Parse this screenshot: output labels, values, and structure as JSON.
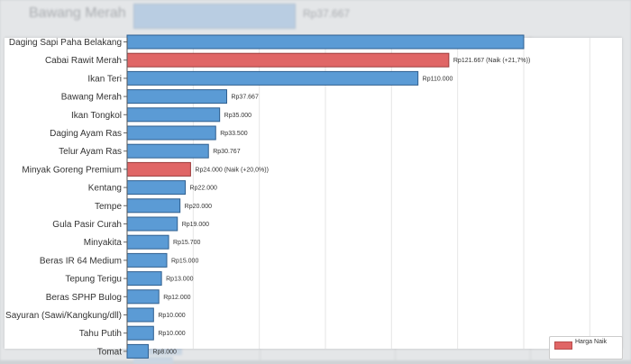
{
  "background": {
    "top_category": "Bawang Merah",
    "top_value_label": "Rp37.667"
  },
  "colors": {
    "normal": "#5b9bd5",
    "normal_border": "#2f5f8f",
    "increase": "#e06666",
    "increase_border": "#9c3b3b"
  },
  "legend": {
    "label": "Harga Naik"
  },
  "chart_data": {
    "type": "bar",
    "orientation": "horizontal",
    "xlim": [
      0,
      175000
    ],
    "grid": true,
    "categories": [
      "Daging Sapi Paha Belakang",
      "Cabai Rawit Merah",
      "Ikan Teri",
      "Bawang Merah",
      "Ikan Tongkol",
      "Daging Ayam Ras",
      "Telur Ayam Ras",
      "Minyak Goreng Premium",
      "Kentang",
      "Tempe",
      "Gula Pasir Curah",
      "Minyakita",
      "Beras IR 64 Medium",
      "Tepung Terigu",
      "Beras SPHP Bulog",
      "Sayuran (Sawi/Kangkung/dll)",
      "Tahu Putih",
      "Tomat"
    ],
    "values": [
      150000,
      121667,
      110000,
      37667,
      35000,
      33500,
      30767,
      24000,
      22000,
      20000,
      19000,
      15700,
      15000,
      13000,
      12000,
      10000,
      10000,
      8000
    ],
    "value_labels": [
      "",
      "Rp121.667 (Naik (+21,7%))",
      "Rp110.000",
      "Rp37.667",
      "Rp35.000",
      "Rp33.500",
      "Rp30.767",
      "Rp24.000 (Naik (+20,0%))",
      "Rp22.000",
      "Rp20.000",
      "Rp19.000",
      "Rp15.700",
      "Rp15.000",
      "Rp13.000",
      "Rp12.000",
      "Rp10.000",
      "Rp10.000",
      "Rp8.000"
    ],
    "increased": [
      false,
      true,
      false,
      false,
      false,
      false,
      false,
      true,
      false,
      false,
      false,
      false,
      false,
      false,
      false,
      false,
      false,
      false
    ]
  }
}
